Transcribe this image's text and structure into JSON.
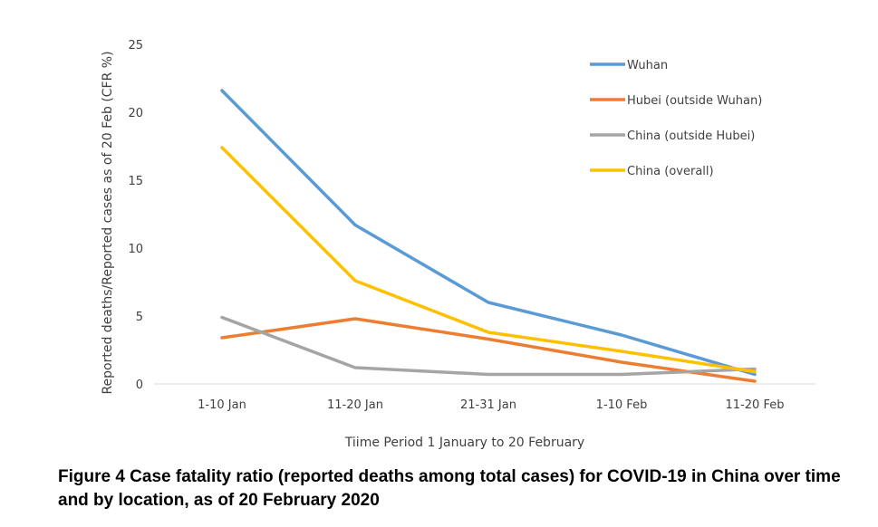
{
  "chart_data": {
    "type": "line",
    "xlabel": "Tiime Period 1 January to 20 February",
    "ylabel": "Reported deaths/Reported  cases as of 20 Feb (CFR %)",
    "categories": [
      "1-10 Jan",
      "11-20 Jan",
      "21-31 Jan",
      "1-10 Feb",
      "11-20 Feb"
    ],
    "y_ticks": [
      "0",
      "5",
      "10",
      "15",
      "20",
      "25"
    ],
    "ylim": [
      0,
      25
    ],
    "grid": false,
    "legend_position": "top-right",
    "series": [
      {
        "name": "Wuhan",
        "color": "#5b9bd5",
        "values": [
          21.6,
          11.7,
          6.0,
          3.6,
          0.7
        ]
      },
      {
        "name": "Hubei (outside Wuhan)",
        "color": "#ed7d31",
        "values": [
          3.4,
          4.8,
          3.3,
          1.6,
          0.2
        ]
      },
      {
        "name": "China (outside Hubei)",
        "color": "#a5a5a5",
        "values": [
          4.9,
          1.2,
          0.7,
          0.7,
          1.1
        ]
      },
      {
        "name": "China (overall)",
        "color": "#ffc000",
        "values": [
          17.4,
          7.6,
          3.8,
          2.4,
          0.9
        ]
      }
    ]
  },
  "caption": "Figure 4 Case fatality ratio (reported deaths among total cases) for COVID-19 in China over time and by location, as of 20 February 2020"
}
